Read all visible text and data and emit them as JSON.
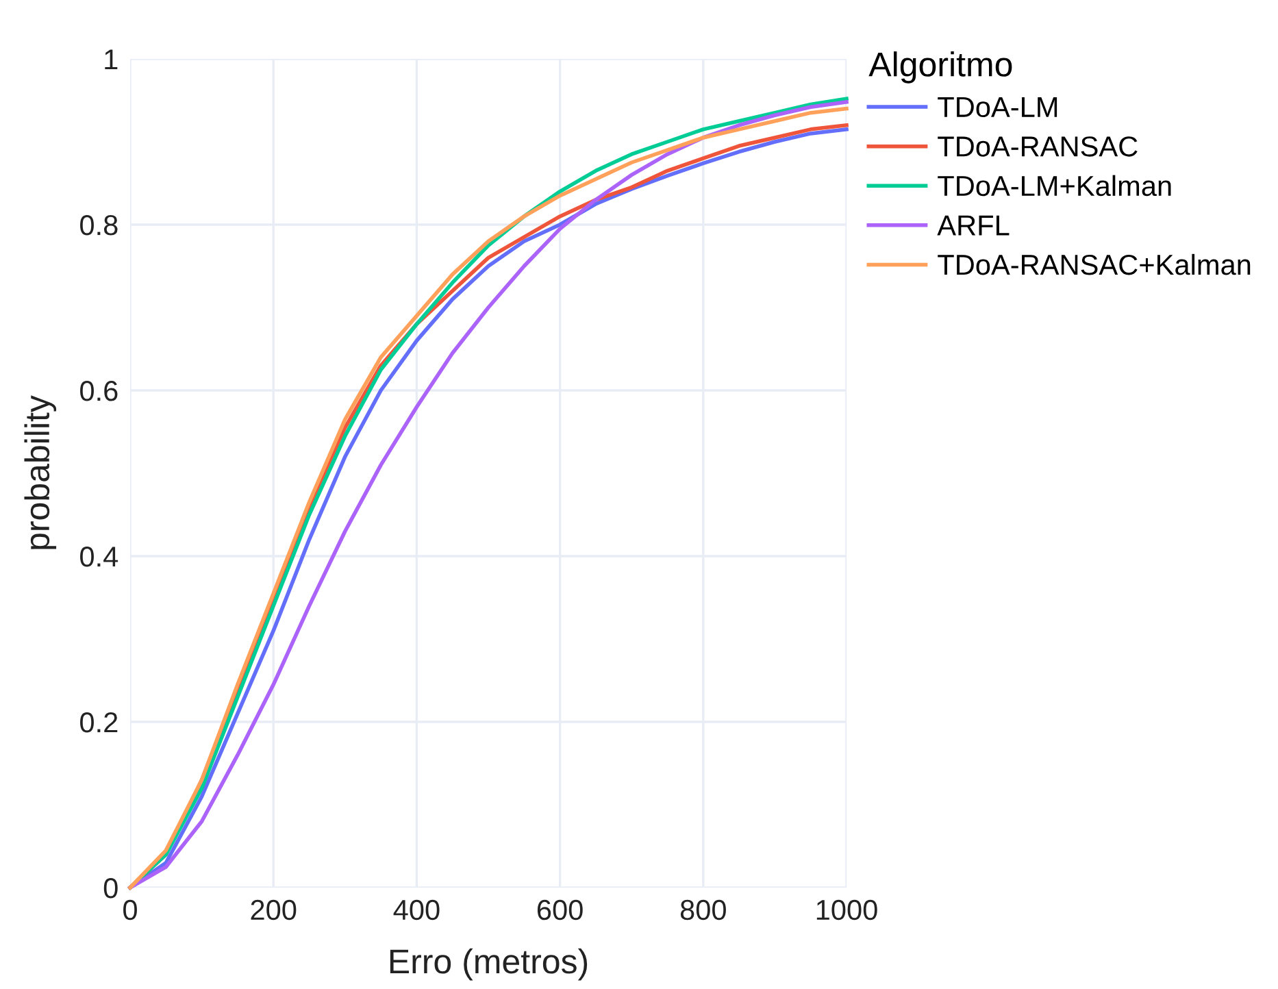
{
  "chart_data": {
    "type": "line",
    "xlabel": "Erro (metros)",
    "ylabel": "probability",
    "legend_title": "Algoritmo",
    "x": [
      0,
      50,
      100,
      150,
      200,
      250,
      300,
      350,
      400,
      450,
      500,
      550,
      600,
      650,
      700,
      750,
      800,
      850,
      900,
      950,
      1000
    ],
    "series": [
      {
        "name": "TDoA-LM",
        "color": "#636efa",
        "values": [
          0,
          0.03,
          0.11,
          0.21,
          0.31,
          0.42,
          0.52,
          0.6,
          0.66,
          0.71,
          0.75,
          0.78,
          0.8,
          0.825,
          0.843,
          0.859,
          0.874,
          0.888,
          0.9,
          0.91,
          0.915
        ]
      },
      {
        "name": "TDoA-RANSAC",
        "color": "#ef553b",
        "values": [
          0,
          0.04,
          0.13,
          0.24,
          0.35,
          0.46,
          0.555,
          0.63,
          0.68,
          0.72,
          0.76,
          0.785,
          0.81,
          0.83,
          0.845,
          0.865,
          0.88,
          0.895,
          0.905,
          0.915,
          0.92
        ]
      },
      {
        "name": "TDoA-LM+Kalman",
        "color": "#00cc96",
        "values": [
          0,
          0.04,
          0.12,
          0.23,
          0.34,
          0.45,
          0.545,
          0.625,
          0.68,
          0.73,
          0.775,
          0.81,
          0.84,
          0.865,
          0.885,
          0.9,
          0.915,
          0.925,
          0.935,
          0.945,
          0.952
        ]
      },
      {
        "name": "ARFL",
        "color": "#ab63fa",
        "values": [
          0,
          0.025,
          0.08,
          0.16,
          0.245,
          0.34,
          0.43,
          0.51,
          0.58,
          0.645,
          0.7,
          0.75,
          0.795,
          0.83,
          0.86,
          0.885,
          0.905,
          0.92,
          0.932,
          0.942,
          0.948
        ]
      },
      {
        "name": "TDoA-RANSAC+Kalman",
        "color": "#ffa15a",
        "values": [
          0,
          0.045,
          0.13,
          0.245,
          0.355,
          0.465,
          0.565,
          0.64,
          0.69,
          0.74,
          0.78,
          0.81,
          0.835,
          0.855,
          0.875,
          0.89,
          0.905,
          0.915,
          0.925,
          0.935,
          0.94
        ]
      }
    ],
    "xlim": [
      0,
      1000
    ],
    "xticks": [
      0,
      200,
      400,
      600,
      800,
      1000
    ],
    "ylim": [
      0,
      1
    ],
    "yticks": [
      0,
      0.2,
      0.4,
      0.6,
      0.8,
      1
    ],
    "grid": true,
    "legend": "top right",
    "marker": "none",
    "line_style": "solid"
  }
}
